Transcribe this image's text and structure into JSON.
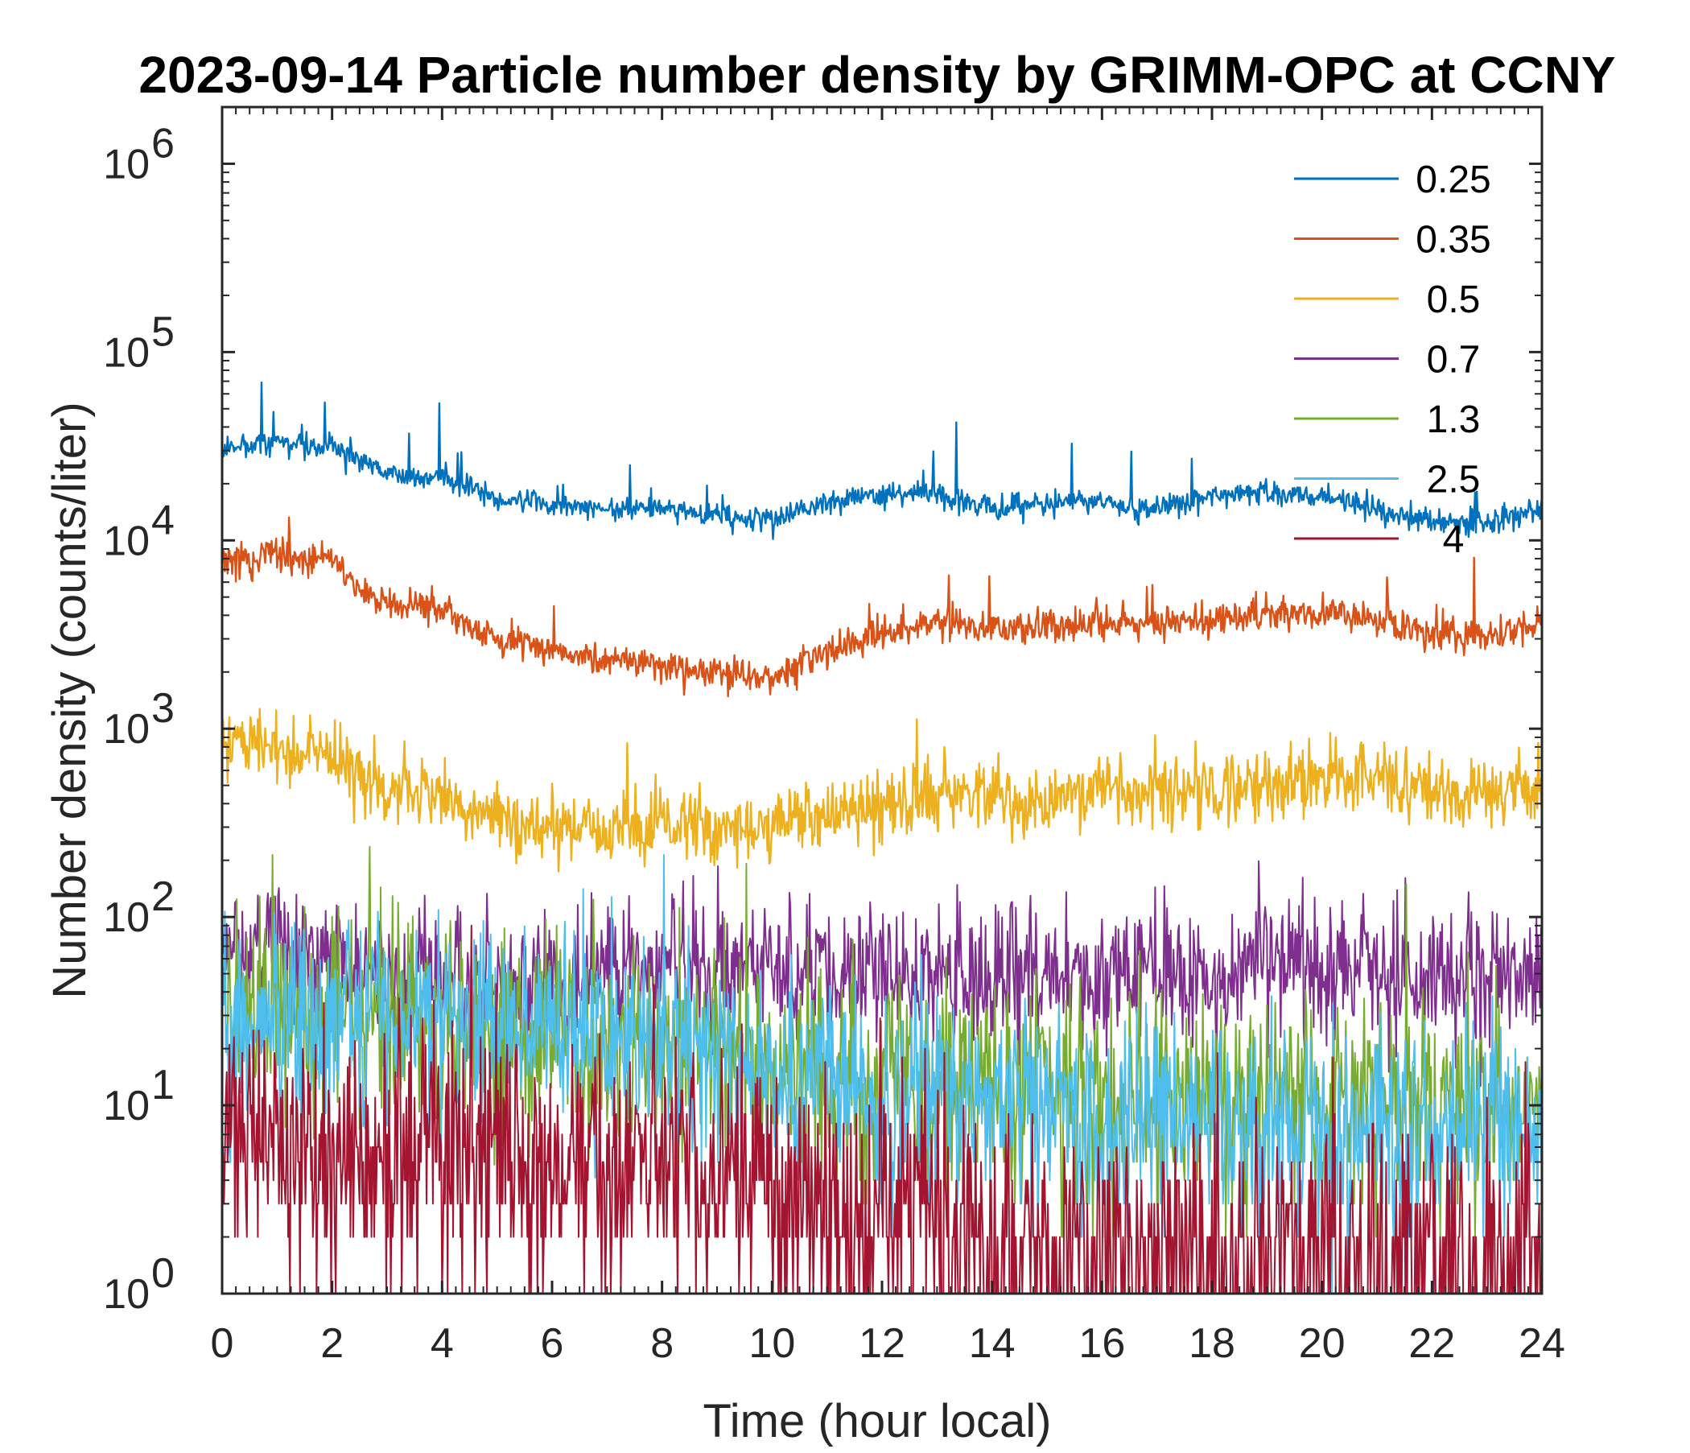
{
  "chart_data": {
    "type": "line",
    "title": "2023-09-14 Particle number density by GRIMM-OPC at CCNY",
    "xlabel": "Time (hour local)",
    "ylabel": "Number density (counts/liter)",
    "xlim": [
      0,
      24
    ],
    "ylim": [
      1,
      2000000
    ],
    "yscale": "log",
    "xticks": [
      0,
      2,
      4,
      6,
      8,
      10,
      12,
      14,
      16,
      18,
      20,
      22,
      24
    ],
    "xticklabels": [
      "0",
      "2",
      "4",
      "6",
      "8",
      "10",
      "12",
      "14",
      "16",
      "18",
      "20",
      "22",
      "24"
    ],
    "yticks": [
      1,
      10,
      100,
      1000,
      10000,
      100000,
      1000000
    ],
    "ytick_base": "10",
    "ytick_exponents": [
      "0",
      "1",
      "2",
      "3",
      "4",
      "5",
      "6"
    ],
    "legend_position": "top-right",
    "grid": false,
    "series": [
      {
        "name": "0.25",
        "color": "#0072BD",
        "noise": 0.05,
        "spikes": 0.2,
        "trend": [
          [
            0,
            30000
          ],
          [
            1,
            33000
          ],
          [
            2,
            32000
          ],
          [
            2.6,
            26000
          ],
          [
            3,
            22000
          ],
          [
            4,
            22000
          ],
          [
            5,
            17000
          ],
          [
            6,
            16000
          ],
          [
            7,
            15000
          ],
          [
            8,
            15000
          ],
          [
            9,
            13500
          ],
          [
            10,
            13000
          ],
          [
            11,
            16000
          ],
          [
            12,
            17500
          ],
          [
            13,
            18000
          ],
          [
            14,
            15000
          ],
          [
            15,
            15500
          ],
          [
            16,
            16000
          ],
          [
            17,
            15000
          ],
          [
            18,
            17000
          ],
          [
            19,
            18000
          ],
          [
            20,
            17000
          ],
          [
            21,
            15000
          ],
          [
            22,
            12500
          ],
          [
            23,
            12500
          ],
          [
            24,
            15000
          ]
        ]
      },
      {
        "name": "0.35",
        "color": "#D95319",
        "noise": 0.07,
        "spikes": 0.15,
        "trend": [
          [
            0,
            7800
          ],
          [
            1,
            8500
          ],
          [
            2,
            7800
          ],
          [
            2.5,
            5500
          ],
          [
            3,
            4600
          ],
          [
            4,
            4300
          ],
          [
            5,
            3000
          ],
          [
            6,
            2600
          ],
          [
            7,
            2300
          ],
          [
            8,
            2200
          ],
          [
            9,
            1950
          ],
          [
            10,
            1900
          ],
          [
            11,
            2600
          ],
          [
            12,
            3200
          ],
          [
            13,
            3800
          ],
          [
            14,
            3400
          ],
          [
            15,
            3500
          ],
          [
            16,
            3800
          ],
          [
            17,
            3600
          ],
          [
            18,
            3700
          ],
          [
            19,
            4100
          ],
          [
            20,
            4200
          ],
          [
            21,
            3800
          ],
          [
            22,
            3200
          ],
          [
            23,
            3100
          ],
          [
            24,
            3700
          ]
        ]
      },
      {
        "name": "0.5",
        "color": "#EDB120",
        "noise": 0.14,
        "spikes": 0.1,
        "trend": [
          [
            0,
            850
          ],
          [
            1,
            800
          ],
          [
            2,
            700
          ],
          [
            3,
            480
          ],
          [
            4,
            420
          ],
          [
            5,
            320
          ],
          [
            6,
            290
          ],
          [
            7,
            280
          ],
          [
            8,
            320
          ],
          [
            9,
            280
          ],
          [
            10,
            300
          ],
          [
            11,
            340
          ],
          [
            12,
            380
          ],
          [
            13,
            480
          ],
          [
            14,
            420
          ],
          [
            15,
            420
          ],
          [
            16,
            460
          ],
          [
            17,
            450
          ],
          [
            18,
            460
          ],
          [
            19,
            520
          ],
          [
            20,
            560
          ],
          [
            21,
            560
          ],
          [
            22,
            480
          ],
          [
            23,
            450
          ],
          [
            24,
            500
          ]
        ]
      },
      {
        "name": "0.7",
        "color": "#7E2F8E",
        "noise": 0.28,
        "spikes": 0.1,
        "trend": [
          [
            0,
            75
          ],
          [
            1,
            70
          ],
          [
            2,
            60
          ],
          [
            3,
            52
          ],
          [
            4,
            48
          ],
          [
            5,
            42
          ],
          [
            6,
            42
          ],
          [
            7,
            45
          ],
          [
            8,
            58
          ],
          [
            9,
            48
          ],
          [
            10,
            52
          ],
          [
            11,
            55
          ],
          [
            12,
            50
          ],
          [
            13,
            50
          ],
          [
            14,
            52
          ],
          [
            15,
            48
          ],
          [
            16,
            50
          ],
          [
            17,
            48
          ],
          [
            18,
            50
          ],
          [
            19,
            55
          ],
          [
            20,
            55
          ],
          [
            21,
            55
          ],
          [
            22,
            52
          ],
          [
            23,
            50
          ],
          [
            24,
            55
          ]
        ]
      },
      {
        "name": "1.3",
        "color": "#77AC30",
        "noise": 0.45,
        "spikes": 0.05,
        "trend": [
          [
            0,
            32
          ],
          [
            2,
            30
          ],
          [
            4,
            28
          ],
          [
            6,
            22
          ],
          [
            8,
            20
          ],
          [
            10,
            16
          ],
          [
            12,
            14
          ],
          [
            13,
            12
          ],
          [
            14,
            12
          ],
          [
            16,
            10
          ],
          [
            18,
            10
          ],
          [
            20,
            10
          ],
          [
            22,
            10
          ],
          [
            24,
            10
          ]
        ]
      },
      {
        "name": "2.5",
        "color": "#4DBEEE",
        "noise": 0.42,
        "spikes": 0.05,
        "trend": [
          [
            0,
            30
          ],
          [
            2,
            32
          ],
          [
            4,
            28
          ],
          [
            6,
            24
          ],
          [
            8,
            22
          ],
          [
            10,
            16
          ],
          [
            12,
            13
          ],
          [
            14,
            9
          ],
          [
            16,
            8
          ],
          [
            18,
            8
          ],
          [
            20,
            8
          ],
          [
            22,
            7
          ],
          [
            24,
            8
          ]
        ]
      },
      {
        "name": "4",
        "color": "#A2142F",
        "noise": 0.55,
        "spikes": 0.02,
        "trend": [
          [
            0,
            6
          ],
          [
            2,
            6
          ],
          [
            4,
            6
          ],
          [
            6,
            5
          ],
          [
            8,
            4
          ],
          [
            10,
            3.5
          ],
          [
            12,
            3
          ],
          [
            13,
            2.2
          ],
          [
            14,
            1.8
          ],
          [
            16,
            1.6
          ],
          [
            18,
            1.5
          ],
          [
            20,
            1.5
          ],
          [
            22,
            1.5
          ],
          [
            24,
            1.6
          ]
        ]
      }
    ]
  }
}
